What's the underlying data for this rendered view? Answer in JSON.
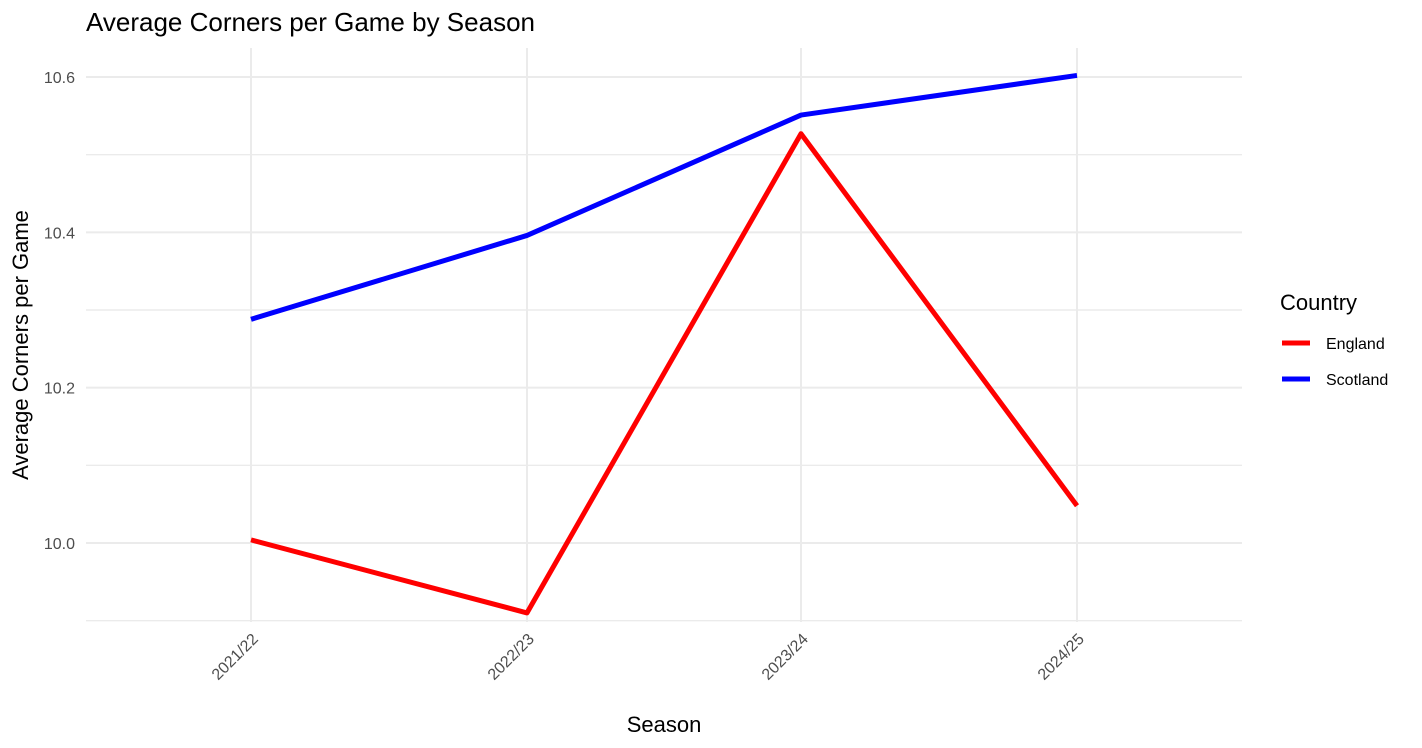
{
  "chart_data": {
    "type": "line",
    "title": "Average Corners per Game by Season",
    "xlabel": "Season",
    "ylabel": "Average Corners per Game",
    "categories": [
      "2021/22",
      "2022/23",
      "2023/24",
      "2024/25"
    ],
    "ylim": [
      9.9,
      10.6
    ],
    "yticks": [
      10.0,
      10.2,
      10.4,
      10.6
    ],
    "ytick_labels": [
      "10.0",
      "10.2",
      "10.4",
      "10.6"
    ],
    "grid": true,
    "legend": {
      "title": "Country",
      "placement": "right"
    },
    "series": [
      {
        "name": "England",
        "color": "#ff0000",
        "values": [
          10.004,
          9.91,
          10.527,
          10.048
        ]
      },
      {
        "name": "Scotland",
        "color": "#0000ff",
        "values": [
          10.288,
          10.396,
          10.551,
          10.602
        ]
      }
    ]
  }
}
